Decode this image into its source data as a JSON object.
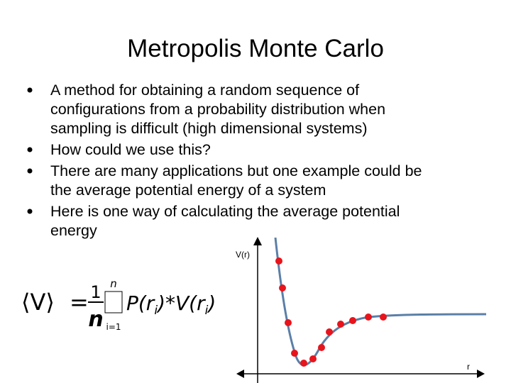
{
  "title": "Metropolis Monte Carlo",
  "bullets": [
    {
      "lines": [
        "A method for obtaining a random sequence of",
        "configurations from a probability distribution when",
        "sampling is difficult (high dimensional systems)"
      ]
    },
    {
      "lines": [
        "How could we use this?"
      ]
    },
    {
      "lines": [
        "There are many applications but one example could be",
        "the average potential energy of a system"
      ]
    },
    {
      "lines": [
        "Here is one way of calculating the average potential",
        "energy"
      ]
    }
  ],
  "formula": {
    "lhs": "⟨V⟩",
    "equals": "=",
    "numerator": "1",
    "denominator": "n",
    "sum_upper": "n",
    "sum_lower": "i=1",
    "term": [
      "P(r",
      "i",
      ")*V(r",
      "i",
      ")"
    ]
  },
  "figure": {
    "y_label": "V(r)",
    "x_label": "r"
  }
}
